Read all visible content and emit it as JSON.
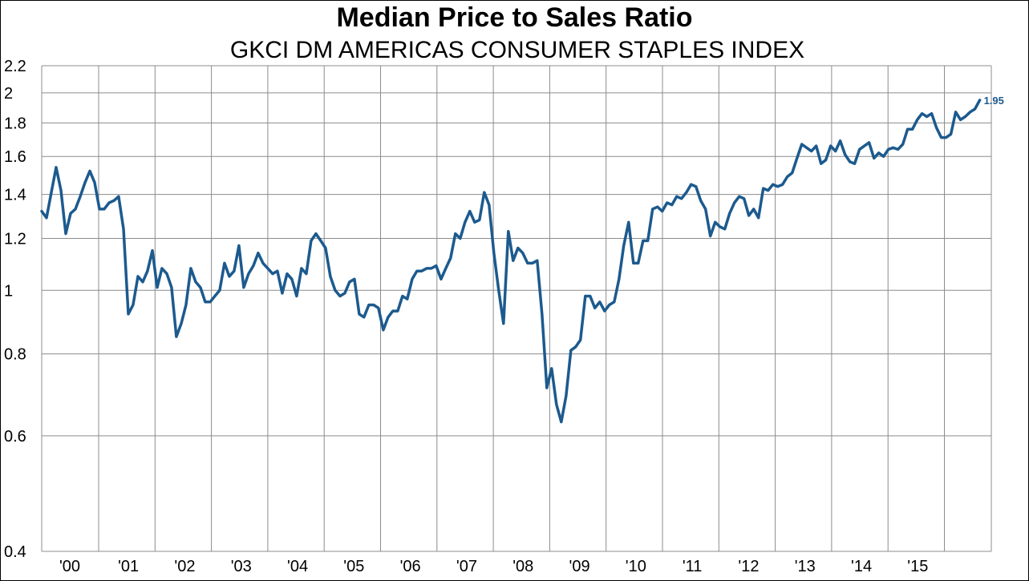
{
  "chart_data": {
    "type": "line",
    "title": "Median Price to Sales Ratio",
    "subtitle": "GKCI DM AMERICAS CONSUMER STAPLES INDEX",
    "xlabel": "",
    "ylabel": "",
    "y_scale": "log",
    "ylim": [
      0.4,
      2.2
    ],
    "y_ticks": [
      0.4,
      0.6,
      0.8,
      1,
      1.2,
      1.4,
      1.6,
      1.8,
      2,
      2.2
    ],
    "y_tick_labels": [
      "0.4",
      "0.6",
      "0.8",
      "1",
      "1.2",
      "1.4",
      "1.6",
      "1.8",
      "2",
      "2.2"
    ],
    "x_tick_labels": [
      "'00",
      "'01",
      "'02",
      "'03",
      "'04",
      "'05",
      "'06",
      "'07",
      "'08",
      "'09",
      "'10",
      "'11",
      "'12",
      "'13",
      "'14",
      "'15"
    ],
    "xlim": [
      2000.0,
      2016.45
    ],
    "grid": true,
    "line_color": "#1c5a8e",
    "end_label": "1.95",
    "series": [
      {
        "x": [
          2000.0,
          2000.083,
          2000.167,
          2000.25,
          2000.333,
          2000.417,
          2000.5,
          2000.583,
          2000.667,
          2000.75,
          2000.833,
          2000.917,
          2001.0,
          2001.083,
          2001.167,
          2001.25,
          2001.333,
          2001.417,
          2001.5,
          2001.583,
          2001.667,
          2001.75,
          2001.833,
          2001.917,
          2002.0,
          2002.083,
          2002.167,
          2002.25,
          2002.333,
          2002.417,
          2002.5,
          2002.583,
          2002.667,
          2002.75,
          2002.833,
          2002.917,
          2003.0,
          2003.083,
          2003.167,
          2003.25,
          2003.333,
          2003.417,
          2003.5,
          2003.583,
          2003.667,
          2003.75,
          2003.833,
          2003.917,
          2004.0,
          2004.083,
          2004.167,
          2004.25,
          2004.333,
          2004.417,
          2004.5,
          2004.583,
          2004.667,
          2004.75,
          2004.833,
          2004.917,
          2005.0,
          2005.083,
          2005.167,
          2005.25,
          2005.333,
          2005.417,
          2005.5,
          2005.583,
          2005.667,
          2005.75,
          2005.833,
          2005.917,
          2006.0,
          2006.083,
          2006.167,
          2006.25,
          2006.333,
          2006.417,
          2006.5,
          2006.583,
          2006.667,
          2006.75,
          2006.833,
          2006.917,
          2007.0,
          2007.083,
          2007.167,
          2007.25,
          2007.333,
          2007.417,
          2007.5,
          2007.583,
          2007.667,
          2007.75,
          2007.833,
          2007.917,
          2008.0,
          2008.083,
          2008.167,
          2008.25,
          2008.333,
          2008.417,
          2008.5,
          2008.583,
          2008.667,
          2008.75,
          2008.833,
          2008.917,
          2009.0,
          2009.083,
          2009.167,
          2009.25,
          2009.333,
          2009.417,
          2009.5,
          2009.583,
          2009.667,
          2009.75,
          2009.833,
          2009.917,
          2010.0,
          2010.083,
          2010.167,
          2010.25,
          2010.333,
          2010.417,
          2010.5,
          2010.583,
          2010.667,
          2010.75,
          2010.833,
          2010.917,
          2011.0,
          2011.083,
          2011.167,
          2011.25,
          2011.333,
          2011.417,
          2011.5,
          2011.583,
          2011.667,
          2011.75,
          2011.833,
          2011.917,
          2012.0,
          2012.083,
          2012.167,
          2012.25,
          2012.333,
          2012.417,
          2012.5,
          2012.583,
          2012.667,
          2012.75,
          2012.833,
          2012.917,
          2013.0,
          2013.083,
          2013.167,
          2013.25,
          2013.333,
          2013.417,
          2013.5,
          2013.583,
          2013.667,
          2013.75,
          2013.833,
          2013.917,
          2014.0,
          2014.083,
          2014.167,
          2014.25,
          2014.333,
          2014.417,
          2014.5,
          2014.583,
          2014.667,
          2014.75,
          2014.833,
          2014.917,
          2015.0,
          2015.083,
          2015.167,
          2015.25,
          2015.333,
          2015.417,
          2015.5,
          2015.583,
          2015.667,
          2015.75,
          2015.833,
          2015.917,
          2016.0,
          2016.083,
          2016.167,
          2016.25
        ],
        "y": [
          1.32,
          1.29,
          1.41,
          1.54,
          1.42,
          1.22,
          1.31,
          1.33,
          1.39,
          1.46,
          1.52,
          1.46,
          1.33,
          1.33,
          1.36,
          1.37,
          1.39,
          1.24,
          0.92,
          0.95,
          1.05,
          1.03,
          1.07,
          1.15,
          1.01,
          1.08,
          1.06,
          1.01,
          0.85,
          0.89,
          0.95,
          1.08,
          1.03,
          1.01,
          0.96,
          0.96,
          0.98,
          1.0,
          1.1,
          1.05,
          1.07,
          1.17,
          1.01,
          1.06,
          1.09,
          1.14,
          1.1,
          1.08,
          1.06,
          1.07,
          0.99,
          1.06,
          1.04,
          0.98,
          1.08,
          1.06,
          1.19,
          1.22,
          1.19,
          1.16,
          1.05,
          1.0,
          0.98,
          0.99,
          1.03,
          1.04,
          0.92,
          0.91,
          0.95,
          0.95,
          0.94,
          0.87,
          0.91,
          0.93,
          0.93,
          0.98,
          0.97,
          1.04,
          1.07,
          1.07,
          1.08,
          1.08,
          1.09,
          1.04,
          1.08,
          1.12,
          1.22,
          1.2,
          1.27,
          1.32,
          1.27,
          1.28,
          1.41,
          1.35,
          1.14,
          1.0,
          0.89,
          1.23,
          1.11,
          1.16,
          1.14,
          1.1,
          1.1,
          1.11,
          0.92,
          0.71,
          0.76,
          0.67,
          0.63,
          0.69,
          0.81,
          0.82,
          0.84,
          0.98,
          0.98,
          0.94,
          0.96,
          0.93,
          0.95,
          0.96,
          1.04,
          1.17,
          1.27,
          1.1,
          1.1,
          1.19,
          1.19,
          1.33,
          1.34,
          1.32,
          1.36,
          1.35,
          1.39,
          1.38,
          1.41,
          1.45,
          1.44,
          1.37,
          1.33,
          1.21,
          1.27,
          1.25,
          1.24,
          1.31,
          1.36,
          1.39,
          1.38,
          1.3,
          1.33,
          1.29,
          1.43,
          1.42,
          1.45,
          1.44,
          1.45,
          1.49,
          1.51,
          1.59,
          1.67,
          1.65,
          1.63,
          1.66,
          1.56,
          1.58,
          1.66,
          1.63,
          1.69,
          1.61,
          1.57,
          1.56,
          1.64,
          1.66,
          1.68,
          1.59,
          1.62,
          1.6,
          1.64,
          1.65,
          1.64,
          1.67,
          1.76,
          1.76,
          1.82,
          1.86,
          1.84,
          1.86,
          1.77,
          1.71,
          1.71,
          1.73,
          1.87,
          1.82,
          1.84,
          1.87,
          1.89,
          1.95
        ]
      }
    ]
  }
}
